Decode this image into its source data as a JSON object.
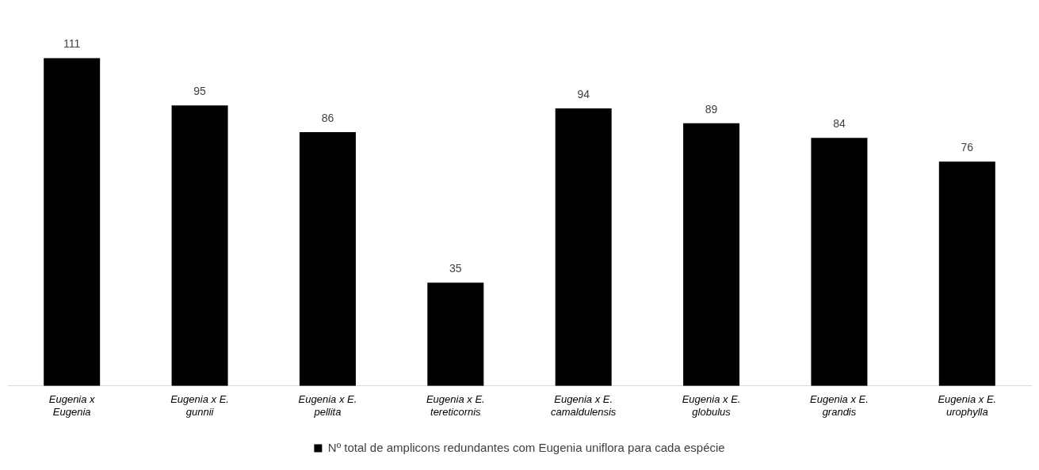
{
  "chart_data": {
    "type": "bar",
    "categories": [
      "Eugenia x Eugenia",
      "Eugenia x E. gunnii",
      "Eugenia x E. pellita",
      "Eugenia x E. tereticornis",
      "Eugenia x E. camaldulensis",
      "Eugenia x E. globulus",
      "Eugenia x E. grandis",
      "Eugenia x E. urophylla"
    ],
    "series": [
      {
        "name": "Nº total de amplicons redundantes com Eugenia uniflora para cada espécie",
        "color": "#000000",
        "values": [
          111,
          95,
          86,
          35,
          94,
          89,
          84,
          76
        ]
      }
    ],
    "data_labels": true,
    "grid": false,
    "legend": "bottom",
    "tick_labels": "x"
  }
}
